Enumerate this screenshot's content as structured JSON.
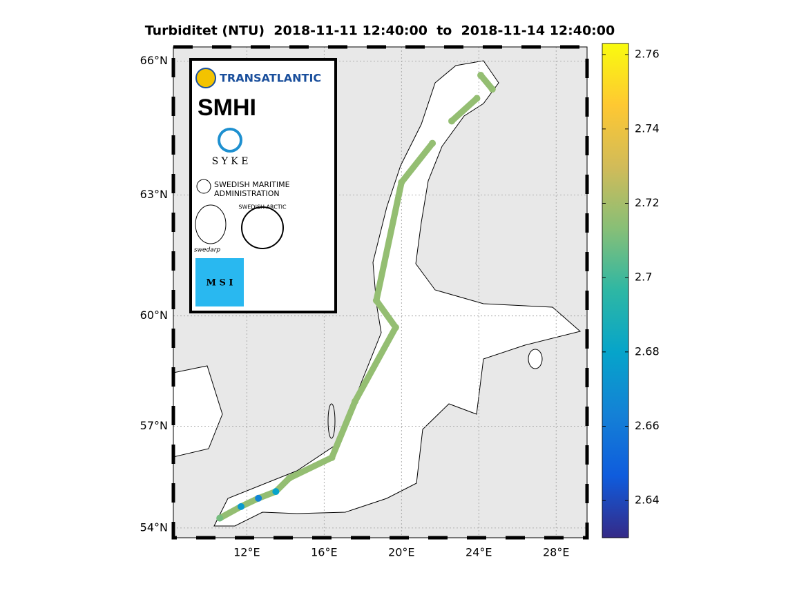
{
  "chart_data": {
    "type": "track-map",
    "title": "Turbiditet (NTU)  2018-11-11 12:40:00  to  2018-11-14 12:40:00",
    "xlim": [
      8.2,
      29.6
    ],
    "ylim": [
      53.7,
      66.3
    ],
    "projection": "mercator",
    "xticks": [
      {
        "value": 12,
        "label": "12°E"
      },
      {
        "value": 16,
        "label": "16°E"
      },
      {
        "value": 20,
        "label": "20°E"
      },
      {
        "value": 24,
        "label": "24°E"
      },
      {
        "value": 28,
        "label": "28°E"
      }
    ],
    "yticks": [
      {
        "value": 54,
        "label": "54°N"
      },
      {
        "value": 57,
        "label": "57°N"
      },
      {
        "value": 60,
        "label": "60°N"
      },
      {
        "value": 63,
        "label": "63°N"
      },
      {
        "value": 66,
        "label": "66°N"
      }
    ],
    "grid": true,
    "lon": [
      10.6,
      11.7,
      12.6,
      13.5,
      14.2,
      16.4,
      17.6,
      19.7,
      18.7,
      20.0,
      21.6,
      null,
      22.6,
      23.9,
      null,
      24.1,
      24.7
    ],
    "lat": [
      54.3,
      54.65,
      54.9,
      55.1,
      55.5,
      56.1,
      57.7,
      59.7,
      60.4,
      63.3,
      64.2,
      null,
      64.7,
      65.2,
      null,
      65.7,
      65.4
    ],
    "values": [
      2.71,
      2.675,
      2.665,
      2.68,
      2.716,
      2.716,
      2.716,
      2.716,
      2.716,
      2.716,
      2.716,
      null,
      2.716,
      2.716,
      null,
      2.716,
      2.716
    ],
    "clim": [
      2.63,
      2.763
    ],
    "cticks": [
      2.64,
      2.66,
      2.68,
      2.7,
      2.72,
      2.74,
      2.76
    ],
    "colormap": [
      "#352a87",
      "#0f5cdd",
      "#1481d6",
      "#06a4ca",
      "#2eb7a4",
      "#87bf77",
      "#d1bb59",
      "#fec832",
      "#f9fb0e"
    ],
    "logos": [
      "TRANSATLANTIC",
      "SMHI",
      "S Y K E",
      "SWEDISH MARITIME",
      "ADMINISTRATION",
      "swedarp",
      "SWEDISH ARCTIC",
      "M S I"
    ]
  }
}
